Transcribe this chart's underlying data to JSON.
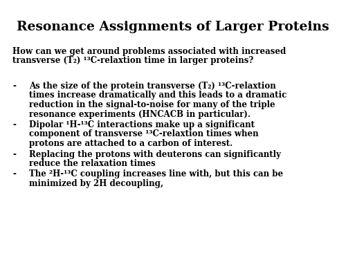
{
  "title": "Resonance Assignments of Larger Proteins",
  "background_color": "#ffffff",
  "text_color": "#000000",
  "title_fontsize": 13.5,
  "body_fontsize": 8.5,
  "question_line1": "How can we get around problems associated with increased",
  "question_line2": "transverse (T₂) ¹³C-relaxtion time in larger proteins?",
  "bullet1_lines": [
    "As the size of the protein transverse (T₂) ¹³C-relaxtion",
    "times increase dramatically and this leads to a dramatic",
    "reduction in the signal-to-noise for many of the triple",
    "resonance experiments (HNCACB in particular)."
  ],
  "bullet2_lines": [
    "Dipolar ¹H-¹³C interactions make up a significant",
    "component of transverse ¹³C-relaxtion times when",
    "protons are attached to a carbon of interest."
  ],
  "bullet3_lines": [
    "Replacing the protons with deuterons can significantly",
    "reduce the relaxation times"
  ],
  "bullet4_lines": [
    "The ²H-¹³C coupling increases line with, but this can be",
    "minimized by 2H decoupling,"
  ],
  "fig_width": 5.0,
  "fig_height": 3.86,
  "dpi": 100
}
